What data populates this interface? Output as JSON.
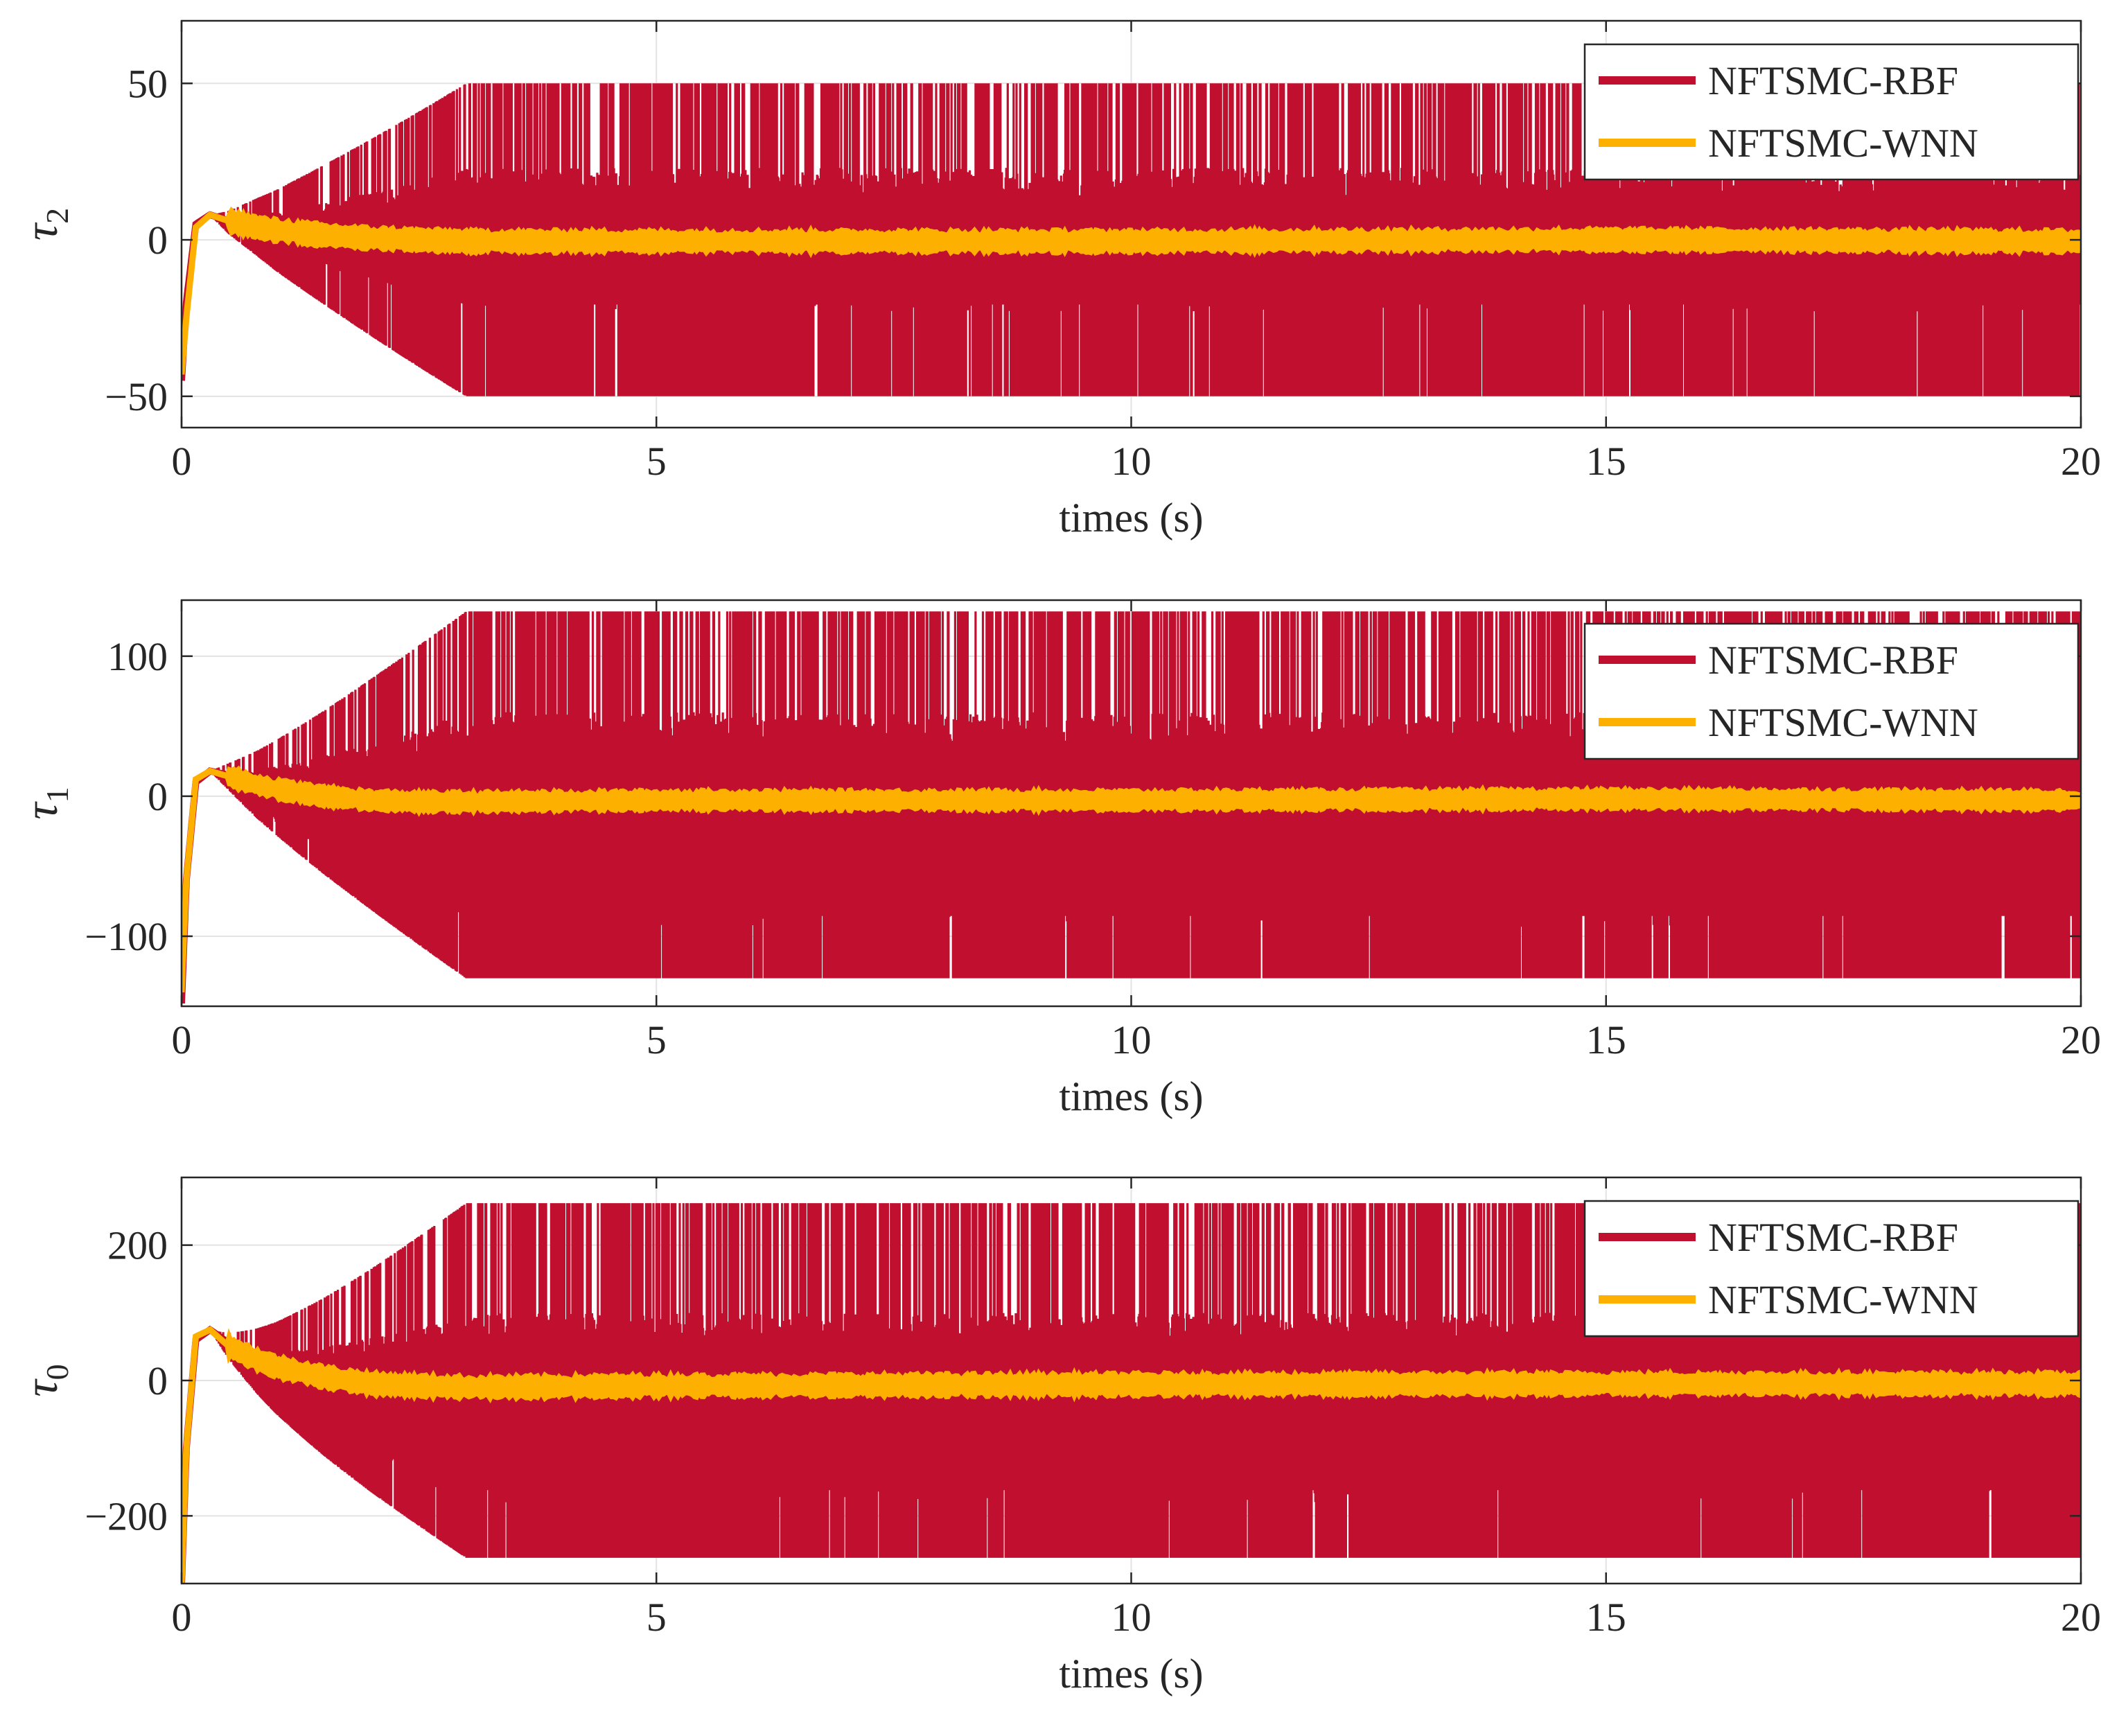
{
  "chart_data": [
    {
      "type": "line",
      "ylabel_symbol": "τ",
      "ylabel_subscript": "2",
      "xlabel": "times (s)",
      "xlim": [
        0,
        20
      ],
      "ylim": [
        -60,
        70
      ],
      "xticks": [
        "0",
        "5",
        "10",
        "15",
        "20"
      ],
      "yticks": [
        {
          "v": 50,
          "label": "50"
        },
        {
          "v": 0,
          "label": "0"
        },
        {
          "v": -50,
          "label": "−50"
        }
      ],
      "grid": true,
      "legend_position": "top-right",
      "series": [
        {
          "name": "NFTSMC-RBF",
          "color": "#c1102f",
          "kind": "chattering",
          "x": [
            0,
            0.05,
            0.15,
            0.3,
            0.5,
            0.8,
            1.0,
            1.5,
            2.0,
            2.5,
            3.0,
            20
          ],
          "y": [
            -45,
            -20,
            5,
            8,
            6,
            5,
            4,
            3,
            2,
            1,
            0,
            0
          ],
          "band_upper": 50,
          "band_lower": -50,
          "inner_upper": 23,
          "inner_lower": -23,
          "onset_end": 3.0
        },
        {
          "name": "NFTSMC-WNN",
          "color": "#fdb000",
          "kind": "band",
          "x": [
            0,
            0.05,
            0.15,
            0.3,
            0.5,
            0.8,
            1.0,
            1.5,
            2.0,
            2.5,
            3.0,
            5,
            10,
            15,
            20
          ],
          "y": [
            -43,
            -25,
            4,
            8,
            6,
            4,
            3,
            1.5,
            0.5,
            0,
            -0.5,
            -0.5,
            -0.5,
            0,
            -0.5
          ],
          "half_width": 3
        }
      ]
    },
    {
      "type": "line",
      "ylabel_symbol": "τ",
      "ylabel_subscript": "1",
      "xlabel": "times (s)",
      "xlim": [
        0,
        20
      ],
      "ylim": [
        -150,
        140
      ],
      "xticks": [
        "0",
        "5",
        "10",
        "15",
        "20"
      ],
      "yticks": [
        {
          "v": 100,
          "label": "100"
        },
        {
          "v": 0,
          "label": "0"
        },
        {
          "v": -100,
          "label": "−100"
        }
      ],
      "grid": true,
      "legend_position": "top-right",
      "series": [
        {
          "name": "NFTSMC-RBF",
          "color": "#c1102f",
          "kind": "chattering",
          "x": [
            0,
            0.05,
            0.15,
            0.3,
            0.5,
            0.8,
            1.0,
            1.5,
            2.0,
            2.5,
            3.0,
            20
          ],
          "y": [
            -148,
            -60,
            10,
            18,
            15,
            10,
            8,
            4,
            2,
            0,
            -2,
            -2
          ],
          "band_upper": 132,
          "band_lower": -130,
          "inner_upper": 60,
          "inner_lower": -95,
          "onset_end": 3.0
        },
        {
          "name": "NFTSMC-WNN",
          "color": "#fdb000",
          "kind": "band",
          "x": [
            0,
            0.05,
            0.15,
            0.3,
            0.5,
            0.8,
            1.0,
            1.5,
            2.0,
            2.5,
            3.0,
            5,
            10,
            15,
            20
          ],
          "y": [
            -140,
            -60,
            12,
            18,
            14,
            8,
            5,
            0,
            -3,
            -4,
            -4,
            -3,
            -3,
            -2,
            -3
          ],
          "half_width": 6
        }
      ]
    },
    {
      "type": "line",
      "ylabel_symbol": "τ",
      "ylabel_subscript": "0",
      "xlabel": "times (s)",
      "xlim": [
        0,
        20
      ],
      "ylim": [
        -300,
        300
      ],
      "xticks": [
        "0",
        "5",
        "10",
        "15",
        "20"
      ],
      "yticks": [
        {
          "v": 200,
          "label": "200"
        },
        {
          "v": 0,
          "label": "0"
        },
        {
          "v": -200,
          "label": "−200"
        }
      ],
      "grid": true,
      "legend_position": "top-right",
      "series": [
        {
          "name": "NFTSMC-RBF",
          "color": "#c1102f",
          "kind": "chattering",
          "x": [
            0,
            0.05,
            0.15,
            0.3,
            0.5,
            0.8,
            1.0,
            1.5,
            2.0,
            2.5,
            3.0,
            20
          ],
          "y": [
            -300,
            -100,
            60,
            75,
            55,
            35,
            25,
            10,
            0,
            -5,
            -10,
            -10
          ],
          "band_upper": 262,
          "band_lower": -262,
          "inner_upper": 100,
          "inner_lower": -180,
          "onset_end": 3.0
        },
        {
          "name": "NFTSMC-WNN",
          "color": "#fdb000",
          "kind": "band",
          "x": [
            0,
            0.05,
            0.15,
            0.3,
            0.5,
            0.8,
            1.0,
            1.5,
            2.0,
            2.5,
            3.0,
            5,
            10,
            15,
            20
          ],
          "y": [
            -300,
            -100,
            65,
            75,
            50,
            30,
            20,
            5,
            -5,
            -8,
            -10,
            -8,
            -6,
            -5,
            -5
          ],
          "half_width": 14
        }
      ]
    }
  ]
}
